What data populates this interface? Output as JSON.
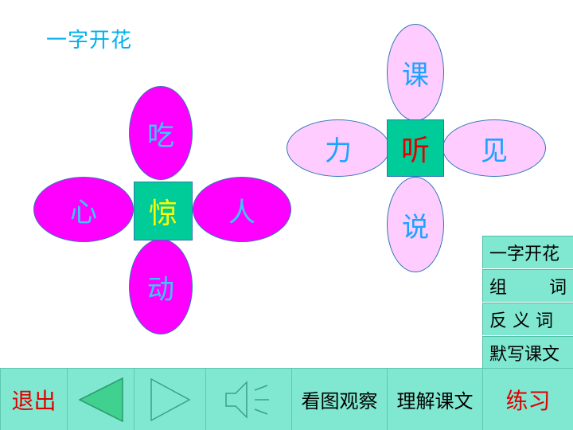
{
  "page_title": "一字开花",
  "flower_left": {
    "center": "惊",
    "top": "吃",
    "left": "心",
    "right": "人",
    "bottom": "动"
  },
  "flower_right": {
    "center": "听",
    "top": "课",
    "left": "力",
    "right": "见",
    "bottom": "说"
  },
  "side_menu": {
    "item1": "一字开花",
    "item2_a": "组",
    "item2_b": "词",
    "item3": "反 义 词",
    "item4": "默写课文"
  },
  "bottom_bar": {
    "exit": "退出",
    "observe": "看图观察",
    "understand": "理解课文",
    "practice": "练习"
  },
  "colors": {
    "magenta_petal": "#ff00ff",
    "pink_petal": "#ffccff",
    "center_green": "#00cc99",
    "menu_bg": "#80e8d0"
  }
}
